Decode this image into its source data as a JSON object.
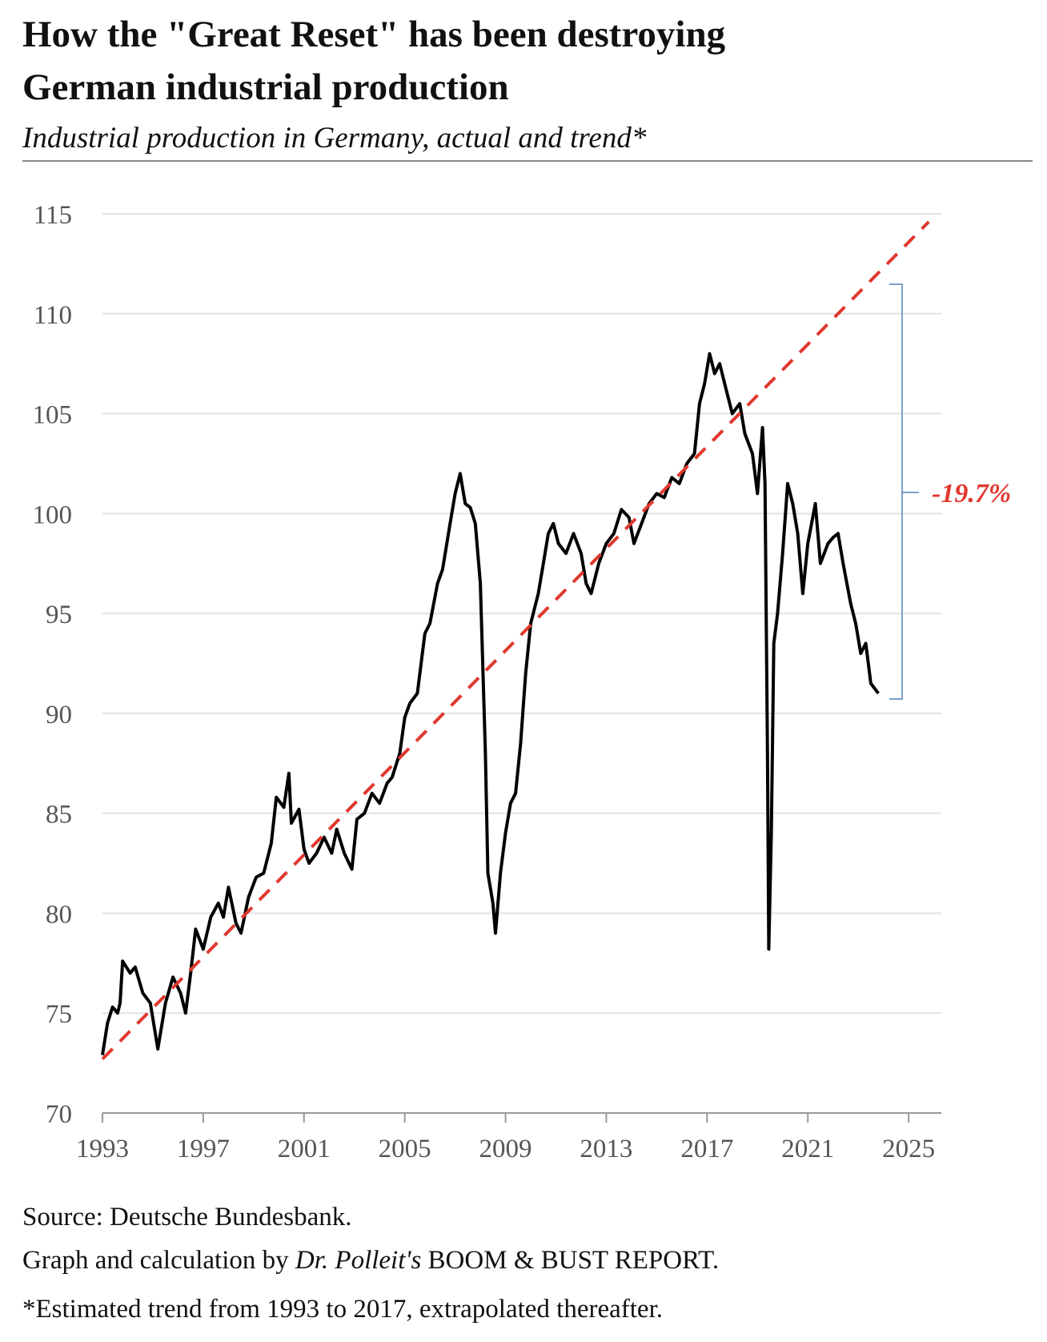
{
  "chart_data": {
    "type": "line",
    "title": [
      "How the \"Great Reset\" has been destroying",
      "German industrial production"
    ],
    "subtitle": "Industrial production in Germany, actual and trend*",
    "xlim": [
      1993,
      2026.3
    ],
    "xticks": [
      1993,
      1997,
      2001,
      2005,
      2009,
      2013,
      2017,
      2021,
      2025
    ],
    "ylim": [
      70,
      115
    ],
    "yticks": [
      70,
      75,
      80,
      85,
      90,
      95,
      100,
      105,
      110,
      115
    ],
    "grid": true,
    "series": [
      {
        "color": "#000000",
        "style": "solid",
        "x": [
          1993.0,
          1993.2,
          1993.4,
          1993.6,
          1993.7,
          1993.8,
          1994.1,
          1994.3,
          1994.6,
          1994.9,
          1995.2,
          1995.5,
          1995.8,
          1996.1,
          1996.3,
          1996.5,
          1996.7,
          1997.0,
          1997.3,
          1997.6,
          1997.8,
          1998.0,
          1998.3,
          1998.5,
          1998.8,
          1999.1,
          1999.4,
          1999.7,
          1999.9,
          2000.2,
          2000.4,
          2000.5,
          2000.8,
          2001.0,
          2001.2,
          2001.5,
          2001.8,
          2002.1,
          2002.3,
          2002.6,
          2002.9,
          2003.1,
          2003.4,
          2003.7,
          2004.0,
          2004.3,
          2004.5,
          2004.8,
          2005.0,
          2005.2,
          2005.5,
          2005.8,
          2006.0,
          2006.3,
          2006.5,
          2006.8,
          2007.0,
          2007.2,
          2007.4,
          2007.6,
          2007.8,
          2008.0,
          2008.2,
          2008.3,
          2008.5,
          2008.6,
          2008.8,
          2009.0,
          2009.2,
          2009.4,
          2009.6,
          2009.8,
          2010.0,
          2010.3,
          2010.5,
          2010.7,
          2010.9,
          2011.1,
          2011.4,
          2011.7,
          2012.0,
          2012.2,
          2012.4,
          2012.7,
          2013.0,
          2013.3,
          2013.6,
          2013.9,
          2014.1,
          2014.4,
          2014.7,
          2015.0,
          2015.3,
          2015.6,
          2015.9,
          2016.2,
          2016.5,
          2016.7,
          2016.9,
          2017.1,
          2017.3,
          2017.5,
          2017.7,
          2018.0,
          2018.3,
          2018.5,
          2018.8,
          2019.0,
          2019.2,
          2019.3,
          2019.4,
          2019.45,
          2019.55,
          2019.65,
          2019.8,
          2020.0,
          2020.2,
          2020.4,
          2020.6,
          2020.8,
          2021.0,
          2021.3,
          2021.5,
          2021.8,
          2022.0,
          2022.2,
          2022.4,
          2022.7,
          2022.9,
          2023.1,
          2023.3,
          2023.5,
          2023.8
        ],
        "values": [
          72.9,
          74.5,
          75.3,
          75.0,
          75.5,
          77.6,
          77.0,
          77.3,
          76.0,
          75.5,
          73.2,
          75.5,
          76.8,
          76.0,
          75.0,
          77.0,
          79.2,
          78.2,
          79.8,
          80.5,
          79.8,
          81.3,
          79.5,
          79.0,
          80.8,
          81.8,
          82.0,
          83.5,
          85.8,
          85.3,
          87.0,
          84.5,
          85.2,
          83.2,
          82.5,
          83.0,
          83.8,
          83.0,
          84.2,
          83.0,
          82.2,
          84.7,
          85.0,
          86.0,
          85.5,
          86.5,
          86.8,
          88.0,
          89.8,
          90.5,
          91.0,
          94.0,
          94.5,
          96.5,
          97.2,
          99.5,
          101.0,
          102.0,
          100.5,
          100.3,
          99.5,
          96.5,
          88.0,
          82.0,
          80.5,
          79.0,
          82.0,
          84.0,
          85.5,
          86.0,
          88.5,
          92.0,
          94.5,
          96.0,
          97.5,
          99.0,
          99.5,
          98.5,
          98.0,
          99.0,
          98.0,
          96.5,
          96.0,
          97.5,
          98.5,
          99.0,
          100.2,
          99.8,
          98.5,
          99.5,
          100.5,
          101.0,
          100.8,
          101.8,
          101.5,
          102.5,
          103.0,
          105.5,
          106.5,
          108.0,
          107.0,
          107.5,
          106.5,
          105.0,
          105.5,
          104.0,
          103.0,
          101.0,
          104.3,
          101.5,
          88.0,
          78.2,
          84.0,
          93.5,
          95.0,
          98.0,
          101.5,
          100.5,
          99.0,
          96.0,
          98.5,
          100.5,
          97.5,
          98.5,
          98.8,
          99.0,
          97.5,
          95.5,
          94.5,
          93.0,
          93.5,
          91.5,
          91.0
        ]
      },
      {
        "color": "#e0382f",
        "style": "dashed",
        "x": [
          1993,
          2025.8
        ],
        "values": [
          72.7,
          114.6
        ]
      }
    ],
    "annotation": "-19.7%",
    "source": "Source: Deutsche Bundesbank.",
    "credit": [
      "Graph and calculation by ",
      "Dr. Polleit's",
      " BOOM & BUST REPORT."
    ],
    "footnote": "*Estimated trend from 1993 to 2017, extrapolated thereafter."
  }
}
